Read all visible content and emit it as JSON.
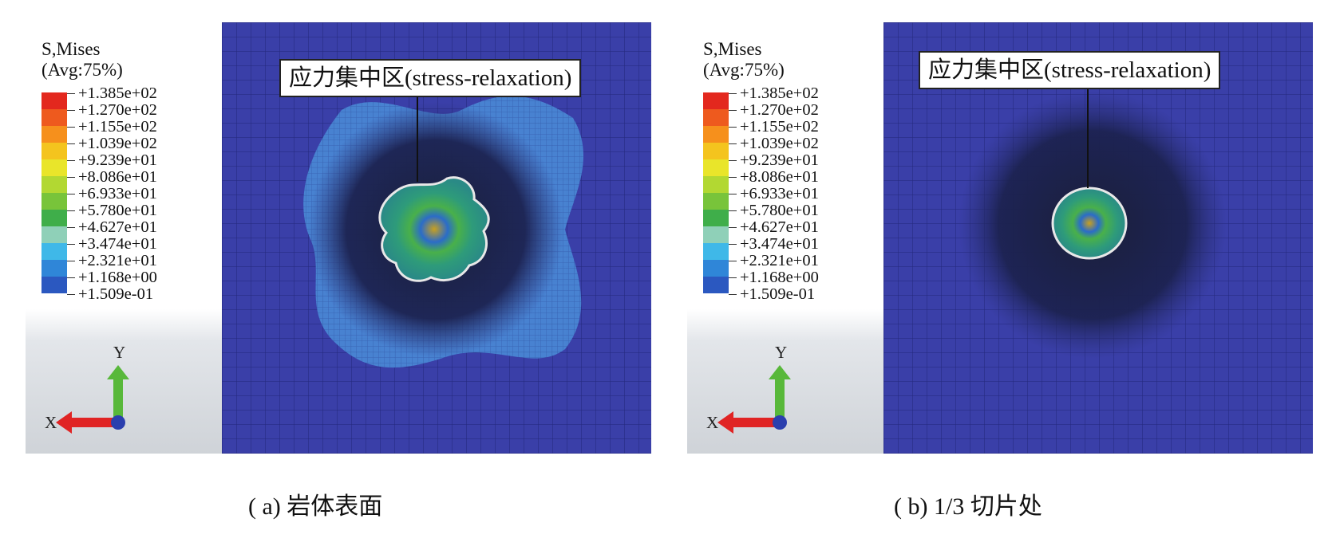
{
  "panels": [
    {
      "legend_title": "S,Mises",
      "legend_sub": "(Avg:75%)",
      "legend_values": [
        "+1.385e+02",
        "+1.270e+02",
        "+1.155e+02",
        "+1.039e+02",
        "+9.239e+01",
        "+8.086e+01",
        "+6.933e+01",
        "+5.780e+01",
        "+4.627e+01",
        "+3.474e+01",
        "+2.321e+01",
        "+1.168e+00",
        "+1.509e-01"
      ],
      "axis_x": "X",
      "axis_y": "Y",
      "callout": "应力集中区(stress-relaxation)",
      "caption": "( a)  岩体表面"
    },
    {
      "legend_title": "S,Mises",
      "legend_sub": "(Avg:75%)",
      "legend_values": [
        "+1.385e+02",
        "+1.270e+02",
        "+1.155e+02",
        "+1.039e+02",
        "+9.239e+01",
        "+8.086e+01",
        "+6.933e+01",
        "+5.780e+01",
        "+4.627e+01",
        "+3.474e+01",
        "+2.321e+01",
        "+1.168e+00",
        "+1.509e-01"
      ],
      "axis_x": "X",
      "axis_y": "Y",
      "callout": "应力集中区(stress-relaxation)",
      "caption": "( b)  1/3 切片处"
    }
  ],
  "colors": {
    "colorbar": [
      "#e3281e",
      "#ee5a1e",
      "#f6901c",
      "#f4c41e",
      "#e9e52a",
      "#b2d832",
      "#78c43a",
      "#3fae4a",
      "#8fd0b8",
      "#3fb8e8",
      "#2f86d8",
      "#2b58c0"
    ],
    "mesh_background": "#3a3fa8",
    "axis_x_arrow": "#e02424",
    "axis_y_arrow": "#58b83a",
    "origin": "#2b3fae"
  }
}
